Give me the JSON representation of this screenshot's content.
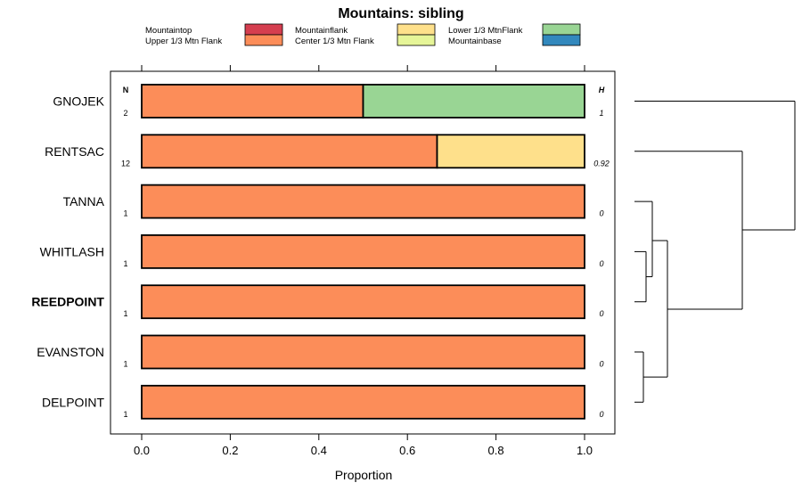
{
  "chart_data": {
    "type": "bar",
    "orientation": "horizontal",
    "stacked": true,
    "title": "Mountains: sibling",
    "xlabel": "Proportion",
    "xlim": [
      0,
      1
    ],
    "x_ticks": [
      "0.0",
      "0.2",
      "0.4",
      "0.6",
      "0.8",
      "1.0"
    ],
    "n_header": "N",
    "h_header": "H",
    "legend": [
      {
        "label": "Mountaintop",
        "color": "#d53e4f"
      },
      {
        "label": "Upper 1/3 Mtn Flank",
        "color": "#fc8d59"
      },
      {
        "label": "Mountainflank",
        "color": "#fee08b"
      },
      {
        "label": "Center 1/3 Mtn Flank",
        "color": "#e6f598"
      },
      {
        "label": "Lower 1/3 MtnFlank",
        "color": "#99d594"
      },
      {
        "label": "Mountainbase",
        "color": "#3288bd"
      }
    ],
    "categories": [
      "GNOJEK",
      "RENTSAC",
      "TANNA",
      "WHITLASH",
      "REEDPOINT",
      "EVANSTON",
      "DELPOINT"
    ],
    "bold_category": "REEDPOINT",
    "n_values": [
      "2",
      "12",
      "1",
      "1",
      "1",
      "1",
      "1"
    ],
    "h_values": [
      "1",
      "0.92",
      "0",
      "0",
      "0",
      "0",
      "0"
    ],
    "series": [
      {
        "name": "Upper 1/3 Mtn Flank",
        "values": [
          0.5,
          0.667,
          1,
          1,
          1,
          1,
          1
        ]
      },
      {
        "name": "Mountainflank",
        "values": [
          0,
          0.333,
          0,
          0,
          0,
          0,
          0
        ]
      },
      {
        "name": "Lower 1/3 MtnFlank",
        "values": [
          0.5,
          0,
          0,
          0,
          0,
          0,
          0
        ]
      }
    ],
    "dendrogram": true
  }
}
